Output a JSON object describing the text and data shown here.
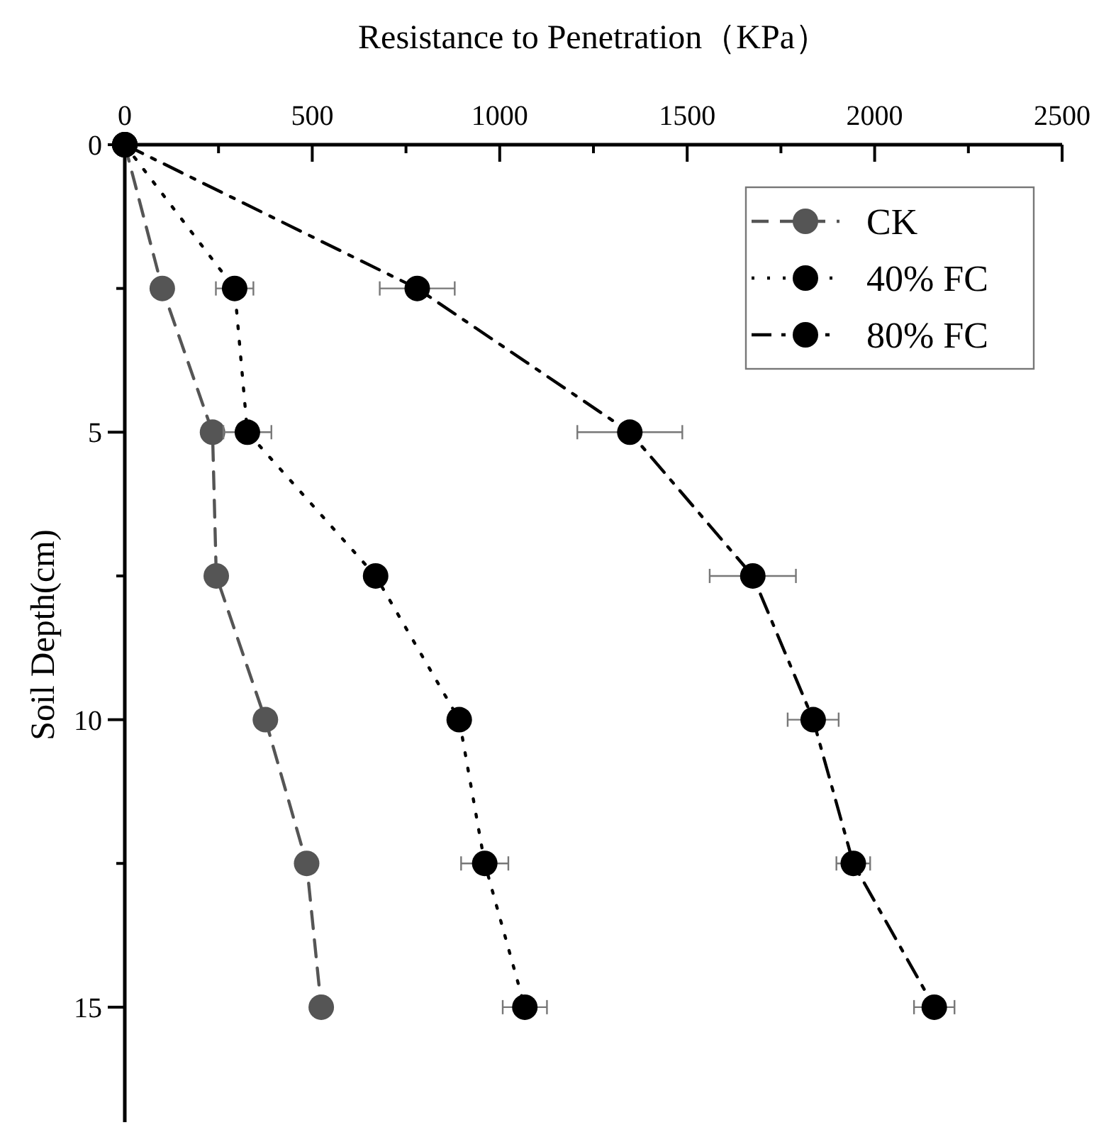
{
  "chart_data": {
    "type": "line",
    "xlabel": "Resistance to Penetration（KPa）",
    "ylabel": "Soil Depth(cm)",
    "orientation": "horizontal",
    "x": [
      0,
      2.5,
      5,
      7.5,
      10,
      12.5,
      15
    ],
    "series": [
      {
        "name": "CK",
        "color": "#555555",
        "line_style": "dashed",
        "values": [
          0,
          100,
          234,
          244,
          375,
          485,
          524
        ]
      },
      {
        "name": "40% FC",
        "color": "#000000",
        "line_style": "dotted",
        "values": [
          0,
          293,
          327,
          669,
          892,
          960,
          1067
        ],
        "errors": [
          null,
          50,
          64,
          null,
          null,
          63,
          59
        ]
      },
      {
        "name": "80% FC",
        "color": "#000000",
        "line_style": "dashdot",
        "values": [
          0,
          780,
          1347,
          1675,
          1836,
          1943,
          2159
        ],
        "errors": [
          null,
          100,
          140,
          115,
          68,
          45,
          54
        ]
      }
    ],
    "xlim": [
      0,
      2500
    ],
    "xticks": [
      0,
      {
        "value": 250,
        "label": null
      },
      500,
      {
        "value": 750,
        "label": null
      },
      1000,
      {
        "value": 1250,
        "label": null
      },
      1500,
      {
        "value": 1750,
        "label": null
      },
      2000,
      {
        "value": 2250,
        "label": null
      },
      2500
    ],
    "ylim": [
      17,
      0
    ],
    "yticks": [
      0,
      {
        "value": 2.5,
        "label": null
      },
      5,
      {
        "value": 7.5,
        "label": null
      },
      10,
      {
        "value": 12.5,
        "label": null
      },
      15
    ],
    "grid": false,
    "legend": "top right",
    "marker": "circle"
  }
}
